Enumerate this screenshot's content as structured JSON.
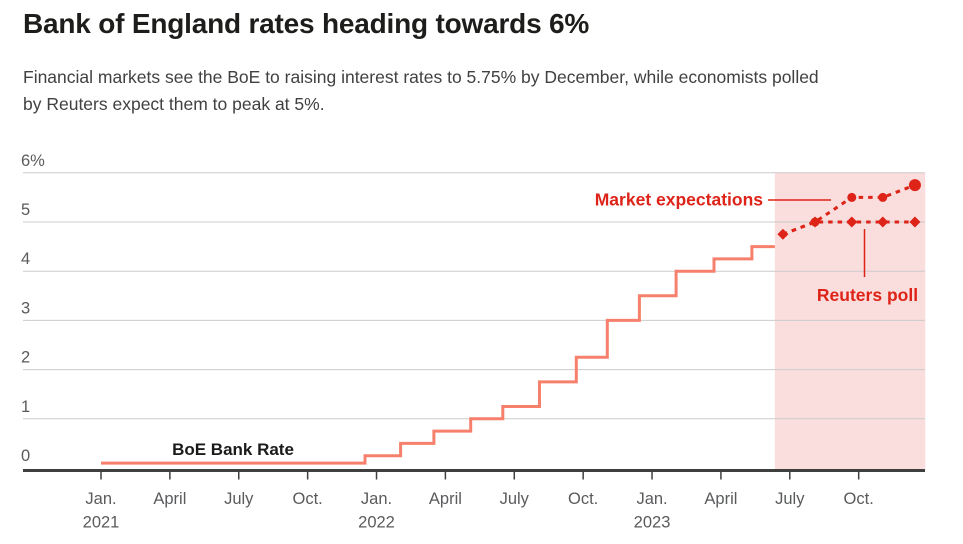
{
  "header": {
    "title": "Bank of England rates heading towards 6%",
    "subtitle_lines": [
      "Financial markets see the BoE to raising interest rates to 5.75% by December, while economists polled",
      "by Reuters expect them to peak at 5%."
    ]
  },
  "chart_data": {
    "type": "line",
    "title": "Bank of England rates heading towards 6%",
    "subtitle": "Financial markets see the BoE to raising interest rates to 5.75% by December, while economists polled by Reuters expect them to peak at 5%.",
    "ylabel": "",
    "xlabel": "",
    "y_axis": {
      "min": 0,
      "max": 6,
      "grid": true,
      "ticks": [
        {
          "value": 6,
          "label": "6%"
        },
        {
          "value": 5,
          "label": "5"
        },
        {
          "value": 4,
          "label": "4"
        },
        {
          "value": 3,
          "label": "3"
        },
        {
          "value": 2,
          "label": "2"
        },
        {
          "value": 1,
          "label": "1"
        },
        {
          "value": 0,
          "label": "0"
        }
      ]
    },
    "x_axis": {
      "unit": "months_since_jan_2021",
      "range_months": [
        0,
        35.9
      ],
      "ticks": [
        {
          "month": 0,
          "label": "Jan.",
          "year": "2021"
        },
        {
          "month": 3,
          "label": "April"
        },
        {
          "month": 6,
          "label": "July"
        },
        {
          "month": 9,
          "label": "Oct."
        },
        {
          "month": 12,
          "label": "Jan.",
          "year": "2022"
        },
        {
          "month": 15,
          "label": "April"
        },
        {
          "month": 18,
          "label": "July"
        },
        {
          "month": 21,
          "label": "Oct."
        },
        {
          "month": 24,
          "label": "Jan.",
          "year": "2023"
        },
        {
          "month": 27,
          "label": "April"
        },
        {
          "month": 30,
          "label": "July"
        },
        {
          "month": 33,
          "label": "Oct."
        }
      ]
    },
    "series": [
      {
        "name": "BoE Bank Rate",
        "style": "step-solid",
        "marker": "none",
        "color": "#f6806b",
        "end_month": 29.35,
        "points": [
          [
            0,
            0.1
          ],
          [
            11.5,
            0.25
          ],
          [
            13.05,
            0.5
          ],
          [
            14.5,
            0.75
          ],
          [
            16.1,
            1.0
          ],
          [
            17.5,
            1.25
          ],
          [
            19.1,
            1.75
          ],
          [
            20.7,
            2.25
          ],
          [
            22.05,
            3.0
          ],
          [
            23.45,
            3.5
          ],
          [
            25.05,
            4.0
          ],
          [
            26.7,
            4.25
          ],
          [
            28.35,
            4.5
          ]
        ]
      },
      {
        "name": "Market expectations",
        "style": "dashed",
        "marker": "circle",
        "color": "#de2318",
        "points": [
          [
            29.7,
            4.75
          ],
          [
            31.1,
            5.0
          ],
          [
            32.7,
            5.5
          ],
          [
            34.05,
            5.5
          ],
          [
            35.45,
            5.75
          ]
        ]
      },
      {
        "name": "Reuters poll",
        "style": "dashed",
        "marker": "diamond",
        "color": "#de2318",
        "points": [
          [
            29.7,
            4.75
          ],
          [
            31.1,
            5.0
          ],
          [
            32.7,
            5.0
          ],
          [
            34.05,
            5.0
          ],
          [
            35.45,
            5.0
          ]
        ]
      }
    ],
    "forecast_region": {
      "start_month": 29.35,
      "end_month": 35.9,
      "color": "#fadddd"
    },
    "annotations": [
      {
        "id": "boe-bank-rate",
        "text": "BoE Bank Rate"
      },
      {
        "id": "market-expectations",
        "text": "Market expectations"
      },
      {
        "id": "reuters-poll",
        "text": "Reuters poll"
      }
    ],
    "colors": {
      "solid_line": "#f6806b",
      "projection": "#de2318",
      "forecast_fill": "#fadddd",
      "gridline": "#cccccc",
      "axis": "#3f3f3f",
      "axis_text": "#5a5b5d",
      "title_text": "#1d1d1b",
      "subtitle_text": "#414143"
    }
  }
}
